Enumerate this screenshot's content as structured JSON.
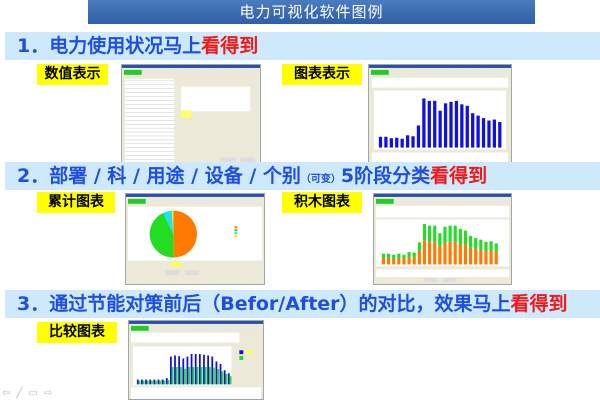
{
  "title": "电力可视化软件图例",
  "sections": [
    {
      "prefix": "1．电力使用状况马上",
      "highlight": "看得到"
    },
    {
      "prefix": "2．部署 / 科 / 用途 / 设备 / 个别",
      "small": "（可变）",
      "suffix": "5阶段分类",
      "highlight": "看得到"
    },
    {
      "prefix": "3．通过节能对策前后（Befor/After）的对比，效果马上",
      "highlight": "看得到"
    }
  ],
  "tags": [
    "数值表示",
    "图表表示",
    "累计图表",
    "积木图表",
    "比较图表"
  ],
  "colors": {
    "band": "#cde9fb",
    "text": "#1f4fe0",
    "highlight": "#f01818",
    "tag": "#ffff00",
    "bar_blue": "#1010e0",
    "bar_green": "#22dd22",
    "bar_orange": "#ff7a00",
    "pie_cyan": "#22e0f0"
  },
  "thumbnails": {
    "bar_chart": [
      22,
      22,
      19,
      20,
      18,
      25,
      23,
      45,
      100,
      95,
      95,
      75,
      90,
      93,
      95,
      88,
      85,
      70,
      65,
      60,
      55,
      57,
      52
    ],
    "stacked": {
      "orange": [
        12,
        12,
        11,
        12,
        11,
        14,
        13,
        25,
        45,
        42,
        42,
        34,
        40,
        42,
        42,
        38,
        37,
        31,
        29,
        27,
        25,
        26,
        23
      ],
      "green": [
        8,
        8,
        7,
        8,
        7,
        9,
        9,
        16,
        30,
        30,
        30,
        24,
        30,
        30,
        30,
        28,
        26,
        22,
        20,
        19,
        17,
        17,
        16
      ]
    },
    "compare": {
      "blue": [
        13,
        13,
        13,
        13,
        13,
        13,
        13,
        17,
        75,
        78,
        76,
        70,
        75,
        82,
        82,
        82,
        80,
        78,
        75,
        62,
        55,
        38,
        30
      ],
      "green": [
        10,
        10,
        10,
        10,
        10,
        10,
        10,
        12,
        47,
        47,
        47,
        42,
        47,
        47,
        47,
        47,
        47,
        47,
        45,
        42,
        35,
        28,
        22
      ]
    },
    "pie": [
      {
        "color": "orange",
        "value": 50
      },
      {
        "color": "green",
        "value": 43
      },
      {
        "color": "cyan",
        "value": 6
      },
      {
        "color": "yellow",
        "value": 1
      }
    ]
  }
}
